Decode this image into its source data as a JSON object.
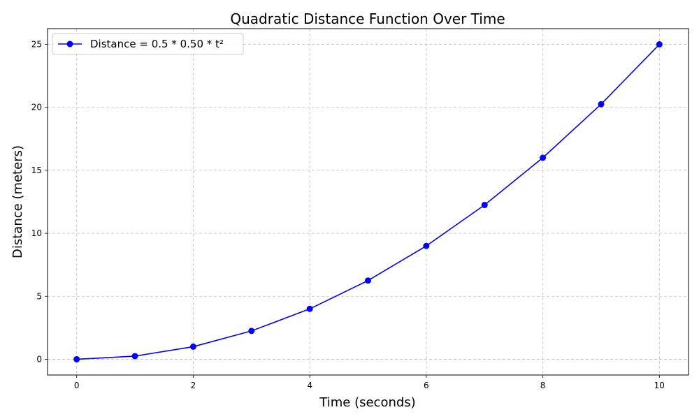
{
  "chart_data": {
    "type": "line",
    "title": "Quadratic Distance Function Over Time",
    "xlabel": "Time (seconds)",
    "ylabel": "Distance (meters)",
    "xlim": [
      -0.5,
      10.5
    ],
    "ylim": [
      -1.25,
      26.25
    ],
    "xticks": [
      0,
      2,
      4,
      6,
      8,
      10
    ],
    "yticks": [
      0,
      5,
      10,
      15,
      20,
      25
    ],
    "xtick_labels": [
      "0",
      "2",
      "4",
      "6",
      "8",
      "10"
    ],
    "ytick_labels": [
      "0",
      "5",
      "10",
      "15",
      "20",
      "25"
    ],
    "grid": true,
    "legend_position": "top-left",
    "series": [
      {
        "name": "Distance = 0.5 * 0.50 * t²",
        "color": "#0000ff",
        "marker": "circle",
        "x": [
          0,
          1,
          2,
          3,
          4,
          5,
          6,
          7,
          8,
          9,
          10
        ],
        "y": [
          0,
          0.25,
          1,
          2.25,
          4,
          6.25,
          9,
          12.25,
          16,
          20.25,
          25
        ]
      }
    ]
  }
}
